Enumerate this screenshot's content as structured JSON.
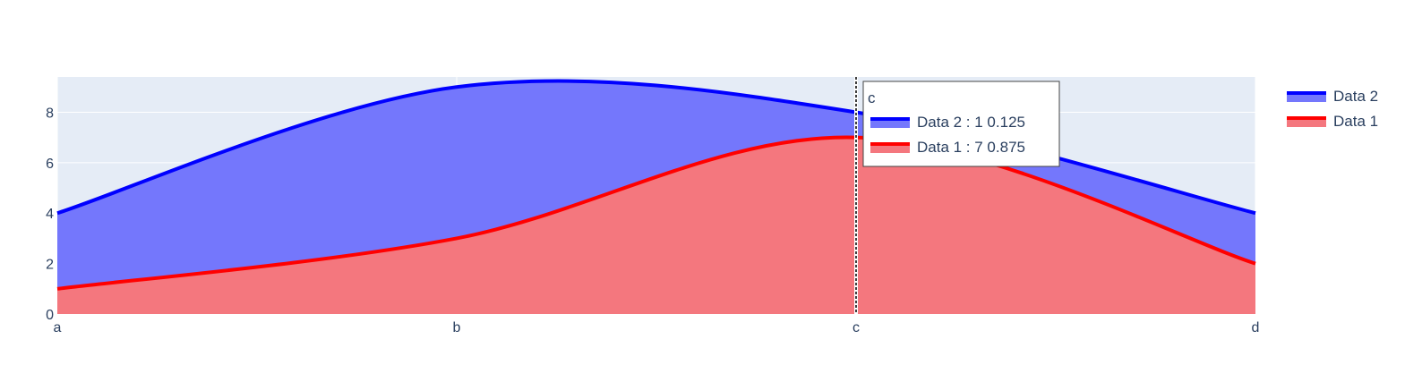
{
  "chart_data": {
    "type": "area",
    "stacked": true,
    "line_shape": "spline",
    "categories": [
      "a",
      "b",
      "c",
      "d"
    ],
    "series": [
      {
        "name": "Data 1",
        "values": [
          1,
          3,
          7,
          2
        ],
        "color": "#ff0000",
        "fill": "#f4777e"
      },
      {
        "name": "Data 2",
        "values": [
          3,
          6,
          1,
          2
        ],
        "color": "#0000ff",
        "fill": "#7477fc"
      }
    ],
    "ylim": [
      0,
      9.4
    ],
    "yticks": [
      0,
      2,
      4,
      6,
      8
    ],
    "grid": true,
    "plot_background": "#e5ecf6",
    "legend_position": "top-right",
    "legend_order": [
      "Data 2",
      "Data 1"
    ],
    "hover": {
      "category": "c",
      "title": "c",
      "entries": [
        {
          "series": "Data 2",
          "text": "Data 2 : 1 0.125"
        },
        {
          "series": "Data 1",
          "text": "Data 1 : 7 0.875"
        }
      ]
    }
  }
}
